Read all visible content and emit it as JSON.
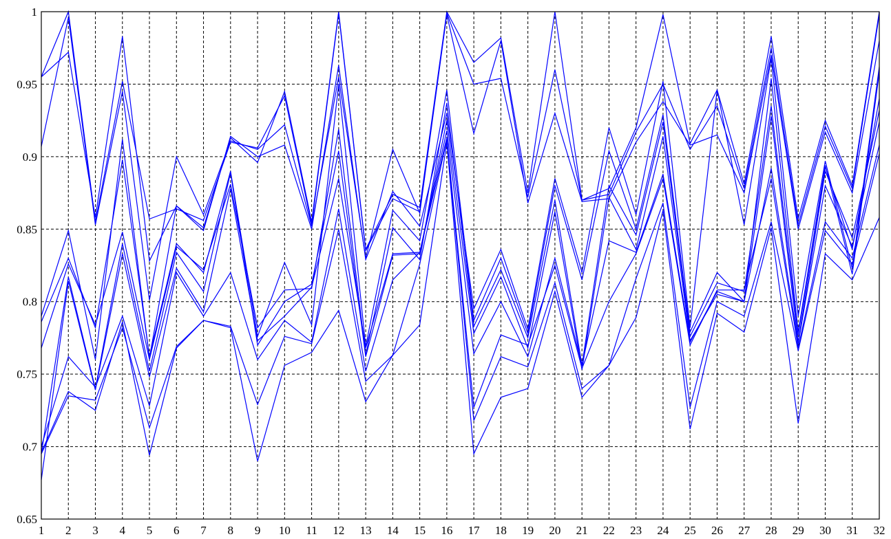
{
  "chart_data": {
    "type": "line",
    "title": "",
    "xlabel": "",
    "ylabel": "",
    "x": [
      1,
      2,
      3,
      4,
      5,
      6,
      7,
      8,
      9,
      10,
      11,
      12,
      13,
      14,
      15,
      16,
      17,
      18,
      19,
      20,
      21,
      22,
      23,
      24,
      25,
      26,
      27,
      28,
      29,
      30,
      31,
      32
    ],
    "xlim": [
      1,
      32
    ],
    "ylim": [
      0.65,
      1
    ],
    "x_ticks": [
      "1",
      "2",
      "3",
      "4",
      "5",
      "6",
      "7",
      "8",
      "9",
      "10",
      "11",
      "12",
      "13",
      "14",
      "15",
      "16",
      "17",
      "18",
      "19",
      "20",
      "21",
      "22",
      "23",
      "24",
      "25",
      "26",
      "27",
      "28",
      "29",
      "30",
      "31",
      "32"
    ],
    "y_ticks": [
      "0.65",
      "0.7",
      "0.75",
      "0.8",
      "0.85",
      "0.9",
      "0.95",
      "1"
    ],
    "grid": true,
    "legend": "none",
    "line_color": "#0000ff",
    "series": [
      {
        "values": [
          0.955,
          0.972,
          0.858,
          0.983,
          0.828,
          0.866,
          0.851,
          0.913,
          0.896,
          0.945,
          0.855,
          1.0,
          0.836,
          0.874,
          0.865,
          1.0,
          0.965,
          0.982,
          0.875,
          1.0,
          0.87,
          0.878,
          0.92,
          0.998,
          0.909,
          0.946,
          0.881,
          0.983,
          0.857,
          0.925,
          0.88,
          1.0
        ]
      },
      {
        "values": [
          0.955,
          1.0,
          0.855,
          0.952,
          0.857,
          0.864,
          0.856,
          0.91,
          0.906,
          0.942,
          0.853,
          0.999,
          0.835,
          0.871,
          0.862,
          0.999,
          0.95,
          0.954,
          0.872,
          0.96,
          0.87,
          0.874,
          0.917,
          0.95,
          0.905,
          0.935,
          0.878,
          0.975,
          0.853,
          0.921,
          0.878,
          0.998
        ]
      },
      {
        "values": [
          0.907,
          0.996,
          0.853,
          0.945,
          0.801,
          0.9,
          0.86,
          0.911,
          0.905,
          0.922,
          0.852,
          0.955,
          0.83,
          0.905,
          0.861,
          0.998,
          0.916,
          0.98,
          0.868,
          0.93,
          0.869,
          0.871,
          0.91,
          0.938,
          0.908,
          0.915,
          0.875,
          0.97,
          0.85,
          0.917,
          0.875,
          0.98
        ]
      },
      {
        "values": [
          0.79,
          0.849,
          0.76,
          0.912,
          0.761,
          0.866,
          0.849,
          0.914,
          0.9,
          0.908,
          0.85,
          0.963,
          0.829,
          0.876,
          0.852,
          0.93,
          0.795,
          0.836,
          0.781,
          0.885,
          0.82,
          0.92,
          0.86,
          0.952,
          0.782,
          0.946,
          0.853,
          0.968,
          0.79,
          0.897,
          0.823,
          0.962
        ]
      },
      {
        "values": [
          0.786,
          0.83,
          0.782,
          0.898,
          0.762,
          0.84,
          0.82,
          0.89,
          0.776,
          0.827,
          0.784,
          0.95,
          0.769,
          0.863,
          0.842,
          0.946,
          0.787,
          0.83,
          0.778,
          0.88,
          0.815,
          0.904,
          0.85,
          0.929,
          0.779,
          0.82,
          0.8,
          0.954,
          0.779,
          0.894,
          0.819,
          0.958
        ]
      },
      {
        "values": [
          0.768,
          0.826,
          0.784,
          0.848,
          0.76,
          0.838,
          0.822,
          0.881,
          0.782,
          0.808,
          0.809,
          0.919,
          0.763,
          0.851,
          0.829,
          0.937,
          0.783,
          0.822,
          0.775,
          0.87,
          0.756,
          0.88,
          0.846,
          0.924,
          0.776,
          0.813,
          0.807,
          0.935,
          0.777,
          0.893,
          0.836,
          0.94
        ]
      },
      {
        "values": [
          0.695,
          0.817,
          0.74,
          0.84,
          0.752,
          0.834,
          0.807,
          0.889,
          0.77,
          0.8,
          0.812,
          0.904,
          0.762,
          0.832,
          0.833,
          0.925,
          0.778,
          0.817,
          0.768,
          0.862,
          0.753,
          0.872,
          0.836,
          0.914,
          0.773,
          0.805,
          0.8,
          0.928,
          0.772,
          0.89,
          0.844,
          0.932
        ]
      },
      {
        "values": [
          0.677,
          0.814,
          0.739,
          0.833,
          0.748,
          0.823,
          0.793,
          0.878,
          0.773,
          0.79,
          0.81,
          0.885,
          0.768,
          0.833,
          0.834,
          0.918,
          0.764,
          0.8,
          0.762,
          0.83,
          0.756,
          0.842,
          0.834,
          0.888,
          0.772,
          0.807,
          0.8,
          0.892,
          0.771,
          0.88,
          0.838,
          0.924
        ]
      },
      {
        "values": [
          0.7,
          0.762,
          0.741,
          0.79,
          0.728,
          0.82,
          0.79,
          0.82,
          0.76,
          0.787,
          0.772,
          0.864,
          0.752,
          0.815,
          0.834,
          0.913,
          0.727,
          0.777,
          0.77,
          0.825,
          0.754,
          0.8,
          0.833,
          0.885,
          0.77,
          0.808,
          0.808,
          0.885,
          0.768,
          0.855,
          0.83,
          0.908
        ]
      },
      {
        "values": [
          0.696,
          0.738,
          0.725,
          0.786,
          0.694,
          0.768,
          0.787,
          0.783,
          0.729,
          0.776,
          0.771,
          0.85,
          0.745,
          0.763,
          0.826,
          0.912,
          0.718,
          0.762,
          0.755,
          0.813,
          0.74,
          0.756,
          0.816,
          0.868,
          0.727,
          0.8,
          0.79,
          0.855,
          0.766,
          0.849,
          0.826,
          0.902
        ]
      },
      {
        "values": [
          0.695,
          0.735,
          0.732,
          0.782,
          0.713,
          0.769,
          0.787,
          0.782,
          0.69,
          0.756,
          0.765,
          0.794,
          0.731,
          0.763,
          0.784,
          0.91,
          0.695,
          0.734,
          0.74,
          0.807,
          0.734,
          0.756,
          0.789,
          0.863,
          0.712,
          0.792,
          0.779,
          0.851,
          0.716,
          0.833,
          0.815,
          0.858
        ]
      }
    ]
  }
}
